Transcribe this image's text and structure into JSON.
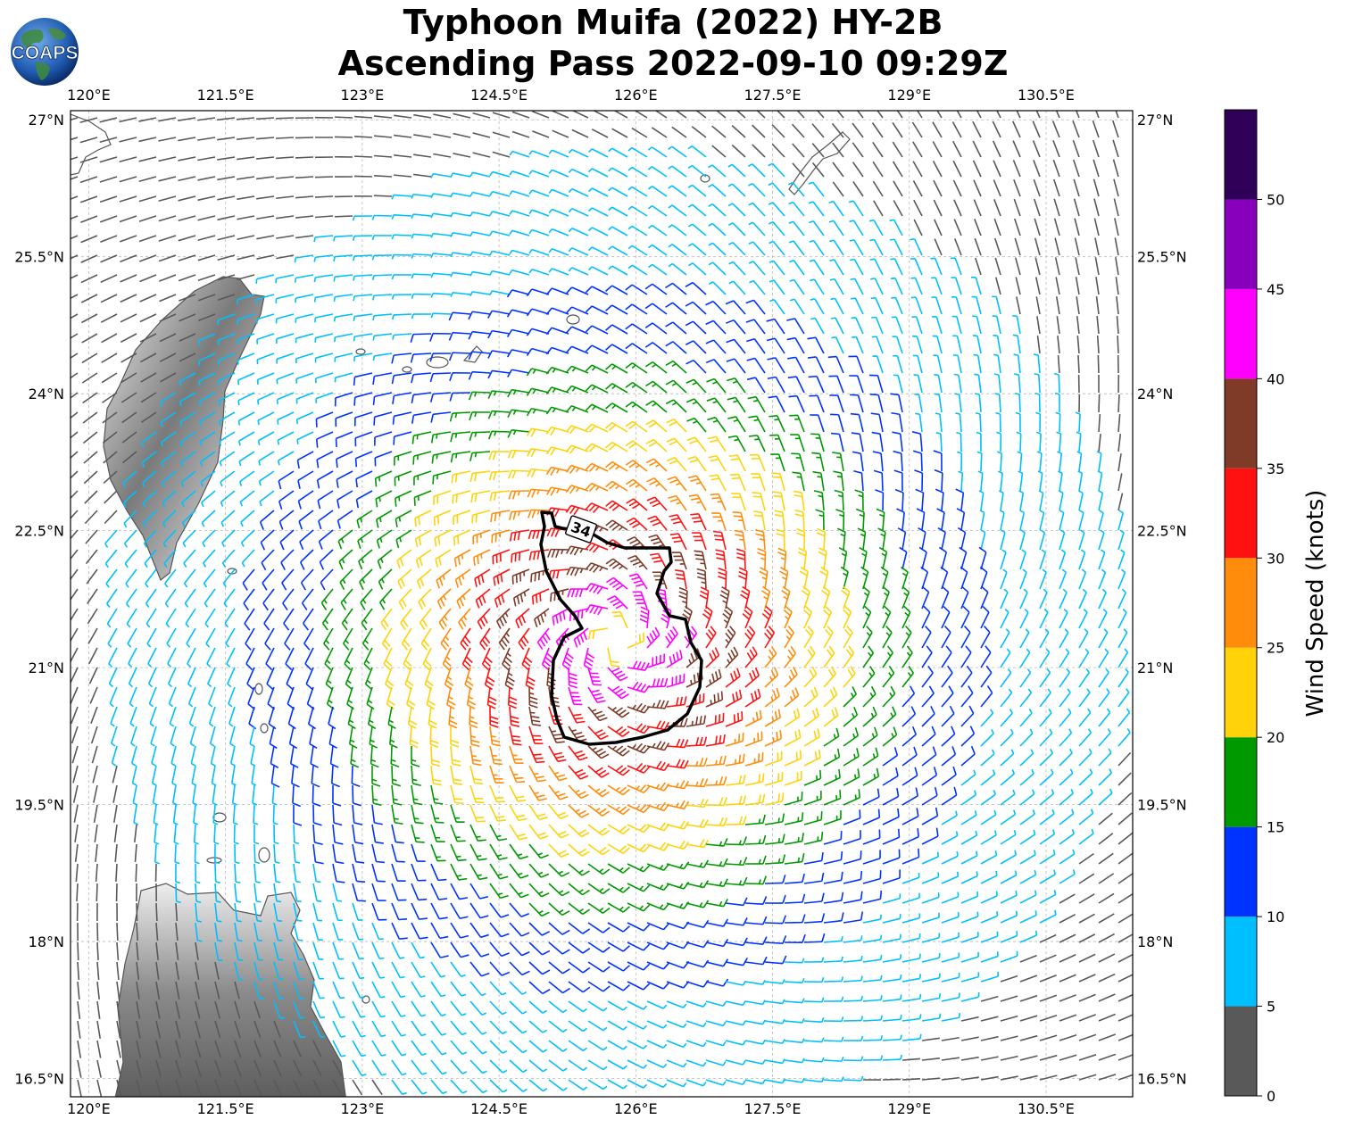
{
  "header": {
    "title_line1": "Typhoon Muifa (2022) HY-2B",
    "title_line2": "Ascending Pass 2022-09-10 09:29Z",
    "logo_text": "COAPS"
  },
  "map": {
    "lon_ticks": [
      "120°E",
      "121.5°E",
      "123°E",
      "124.5°E",
      "126°E",
      "127.5°E",
      "129°E",
      "130.5°E"
    ],
    "lat_ticks": [
      "27°N",
      "25.5°N",
      "24°N",
      "22.5°N",
      "21°N",
      "19.5°N",
      "18°N",
      "16.5°N"
    ],
    "lon_values": [
      120,
      121.5,
      123,
      124.5,
      126,
      127.5,
      129,
      130.5
    ],
    "lat_values": [
      27,
      25.5,
      24,
      22.5,
      21,
      19.5,
      18,
      16.5
    ],
    "extent": {
      "lon_min": 119.8,
      "lon_max": 131.45,
      "lat_min": 16.3,
      "lat_max": 27.1
    },
    "storm_center": {
      "lon": 125.8,
      "lat": 21.3
    },
    "contour_label": "34"
  },
  "colorbar": {
    "label": "Wind Speed (knots)",
    "ticks": [
      "0",
      "5",
      "10",
      "15",
      "20",
      "25",
      "30",
      "35",
      "40",
      "45",
      "50"
    ],
    "bins": [
      {
        "min": 0,
        "max": 5,
        "color": "#595959"
      },
      {
        "min": 5,
        "max": 10,
        "color": "#00bfff"
      },
      {
        "min": 10,
        "max": 15,
        "color": "#0033ff"
      },
      {
        "min": 15,
        "max": 20,
        "color": "#009900"
      },
      {
        "min": 20,
        "max": 25,
        "color": "#ffd20a"
      },
      {
        "min": 25,
        "max": 30,
        "color": "#ff8c0a"
      },
      {
        "min": 30,
        "max": 35,
        "color": "#ff1111"
      },
      {
        "min": 35,
        "max": 40,
        "color": "#7f3a28"
      },
      {
        "min": 40,
        "max": 45,
        "color": "#ff00ff"
      },
      {
        "min": 45,
        "max": 50,
        "color": "#8800bb"
      },
      {
        "min": 50,
        "max": 55,
        "color": "#2e0058"
      }
    ]
  }
}
